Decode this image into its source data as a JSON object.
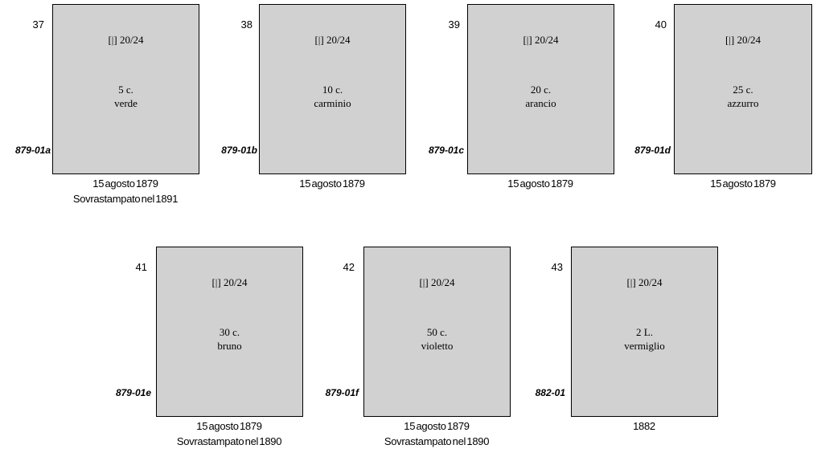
{
  "stamps": [
    {
      "number": "37",
      "code": "879-01a",
      "header": "[|] 20/24",
      "value": "5 c.",
      "color": "verde",
      "caption1": "15 agosto 1879",
      "caption2": "Sovrastampato nel 1891"
    },
    {
      "number": "38",
      "code": "879-01b",
      "header": "[|] 20/24",
      "value": "10 c.",
      "color": "carminio",
      "caption1": "15 agosto 1879",
      "caption2": ""
    },
    {
      "number": "39",
      "code": "879-01c",
      "header": "[|] 20/24",
      "value": "20 c.",
      "color": "arancio",
      "caption1": "15 agosto 1879",
      "caption2": ""
    },
    {
      "number": "40",
      "code": "879-01d",
      "header": "[|] 20/24",
      "value": "25 c.",
      "color": "azzurro",
      "caption1": "15 agosto 1879",
      "caption2": ""
    },
    {
      "number": "41",
      "code": "879-01e",
      "header": "[|] 20/24",
      "value": "30 c.",
      "color": "bruno",
      "caption1": "15 agosto 1879",
      "caption2": "Sovrastampato nel 1890"
    },
    {
      "number": "42",
      "code": "879-01f",
      "header": "[|] 20/24",
      "value": "50 c.",
      "color": "violetto",
      "caption1": "15 agosto 1879",
      "caption2": "Sovrastampato nel 1890"
    },
    {
      "number": "43",
      "code": "882-01",
      "header": "[|] 20/24",
      "value": "2 L.",
      "color": "vermiglio",
      "caption1": "1882",
      "caption2": ""
    }
  ]
}
